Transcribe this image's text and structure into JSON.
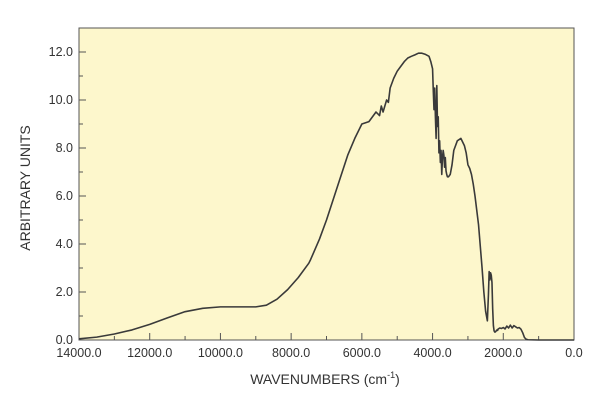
{
  "colors": {
    "plot_background": "#fdf7cc",
    "line": "#3a3a3a",
    "axis": "#555555",
    "text": "#333333"
  },
  "chart_data": {
    "type": "line",
    "xlabel_main": "WAVENUMBERS (cm",
    "xlabel_sup": "-1",
    "xlabel_tail": ")",
    "ylabel": "ARBITRARY UNITS",
    "xlim": [
      14000,
      0
    ],
    "ylim": [
      0,
      13
    ],
    "x_reversed": true,
    "grid": false,
    "x_ticks": [
      14000,
      12000,
      10000,
      8000,
      6000,
      4000,
      2000,
      0
    ],
    "x_tick_labels": [
      "14000.0",
      "12000.0",
      "10000.0",
      "8000.0",
      "6000.0",
      "4000.0",
      "2000.0",
      "0.0"
    ],
    "y_ticks": [
      0,
      2,
      4,
      6,
      8,
      10,
      12
    ],
    "y_tick_labels": [
      "0.0",
      "2.0",
      "4.0",
      "6.0",
      "8.0",
      "10.0",
      "12.0"
    ],
    "series": [
      {
        "x": [
          14000,
          13500,
          13000,
          12500,
          12000,
          11500,
          11000,
          10500,
          10000,
          9500,
          9000,
          8700,
          8400,
          8100,
          7800,
          7500,
          7450,
          7200,
          7000,
          6800,
          6600,
          6400,
          6200,
          6000,
          5800,
          5600,
          5500,
          5450,
          5400,
          5300,
          5250,
          5200,
          5100,
          5000,
          4900,
          4800,
          4700,
          4600,
          4500,
          4400,
          4300,
          4200,
          4100,
          4050,
          4000,
          3980,
          3960,
          3940,
          3920,
          3900,
          3880,
          3860,
          3840,
          3820,
          3800,
          3780,
          3760,
          3740,
          3720,
          3700,
          3680,
          3660,
          3640,
          3620,
          3600,
          3580,
          3550,
          3500,
          3450,
          3400,
          3300,
          3200,
          3100,
          3050,
          3000,
          2950,
          2900,
          2850,
          2800,
          2700,
          2600,
          2550,
          2500,
          2450,
          2420,
          2400,
          2380,
          2360,
          2340,
          2320,
          2300,
          2280,
          2260,
          2240,
          2220,
          2200,
          2180,
          2160,
          2150,
          2100,
          2050,
          2000,
          1950,
          1900,
          1850,
          1800,
          1750,
          1700,
          1650,
          1600,
          1550,
          1500,
          1450,
          1400,
          1350,
          1300,
          1000,
          500,
          0
        ],
        "y": [
          0.05,
          0.12,
          0.25,
          0.42,
          0.65,
          0.92,
          1.18,
          1.32,
          1.38,
          1.38,
          1.38,
          1.45,
          1.7,
          2.1,
          2.6,
          3.2,
          3.35,
          4.2,
          5.0,
          5.9,
          6.8,
          7.7,
          8.4,
          9.0,
          9.1,
          9.5,
          9.35,
          9.75,
          9.5,
          10.0,
          9.9,
          10.5,
          10.9,
          11.2,
          11.4,
          11.6,
          11.75,
          11.82,
          11.88,
          11.95,
          11.95,
          11.9,
          11.82,
          11.6,
          11.3,
          10.4,
          9.6,
          10.5,
          9.3,
          8.4,
          10.6,
          8.9,
          9.3,
          7.8,
          8.3,
          7.4,
          7.9,
          6.9,
          7.6,
          7.9,
          7.7,
          7.2,
          7.6,
          7.05,
          6.9,
          6.8,
          6.8,
          6.9,
          7.3,
          7.9,
          8.3,
          8.4,
          8.1,
          7.8,
          7.3,
          7.15,
          6.9,
          6.5,
          6.0,
          4.8,
          3.0,
          2.0,
          1.2,
          0.8,
          1.9,
          2.85,
          2.5,
          2.8,
          2.7,
          2.4,
          1.3,
          0.6,
          0.38,
          0.33,
          0.34,
          0.38,
          0.42,
          0.4,
          0.45,
          0.5,
          0.48,
          0.52,
          0.46,
          0.58,
          0.5,
          0.62,
          0.5,
          0.6,
          0.55,
          0.5,
          0.52,
          0.45,
          0.3,
          0.1,
          0.03,
          0.01,
          0,
          0,
          0
        ]
      }
    ]
  }
}
